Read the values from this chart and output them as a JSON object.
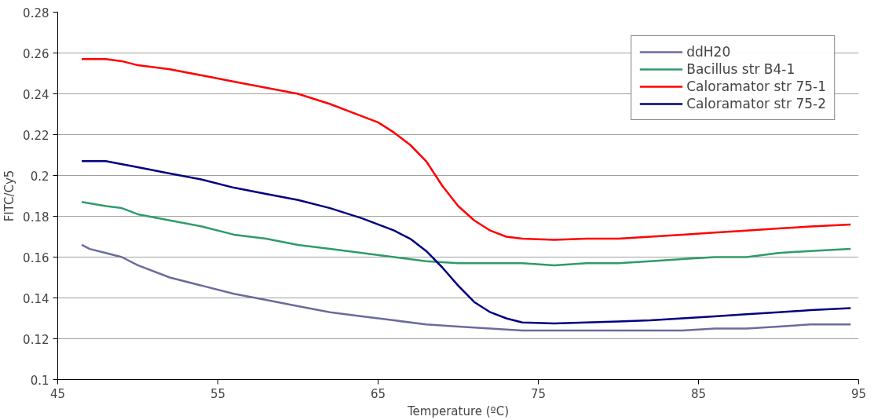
{
  "chart_data": {
    "type": "line",
    "xlabel": "Temperature (ºC)",
    "ylabel": "FITC/Cy5",
    "xlim": [
      45,
      95
    ],
    "xticks": [
      45,
      55,
      65,
      75,
      85,
      95
    ],
    "ylim": [
      0.1,
      0.28
    ],
    "yticks": [
      0.1,
      0.12,
      0.14,
      0.16,
      0.18,
      0.2,
      0.22,
      0.24,
      0.26,
      0.28
    ],
    "grid": "y",
    "legend": "top right",
    "marker": "none",
    "line_style": "solid",
    "series": [
      {
        "name": "ddH20",
        "color": "#6b6b9e",
        "x": [
          46.5,
          47,
          48,
          49,
          50,
          52,
          54,
          56,
          58,
          60,
          62,
          64,
          66,
          68,
          70,
          72,
          74,
          76,
          78,
          80,
          82,
          84,
          86,
          88,
          90,
          92,
          94.5
        ],
        "values": [
          0.166,
          0.164,
          0.162,
          0.16,
          0.156,
          0.15,
          0.146,
          0.142,
          0.139,
          0.136,
          0.133,
          0.131,
          0.129,
          0.127,
          0.126,
          0.125,
          0.124,
          0.124,
          0.124,
          0.124,
          0.124,
          0.124,
          0.125,
          0.125,
          0.126,
          0.127,
          0.127
        ]
      },
      {
        "name": "Bacillus str B4-1",
        "color": "#2e9b6b",
        "x": [
          46.5,
          48,
          49,
          50,
          52,
          54,
          56,
          58,
          60,
          62,
          64,
          66,
          68,
          70,
          72,
          74,
          76,
          78,
          80,
          82,
          84,
          86,
          88,
          90,
          92,
          94.5
        ],
        "values": [
          0.187,
          0.185,
          0.184,
          0.181,
          0.178,
          0.175,
          0.171,
          0.169,
          0.166,
          0.164,
          0.162,
          0.16,
          0.158,
          0.157,
          0.157,
          0.157,
          0.156,
          0.157,
          0.157,
          0.158,
          0.159,
          0.16,
          0.16,
          0.162,
          0.163,
          0.164
        ]
      },
      {
        "name": "Caloramator str 75-1",
        "color": "#ff0000",
        "x": [
          46.5,
          48,
          49,
          50,
          52,
          54,
          56,
          58,
          60,
          62,
          64,
          65,
          66,
          67,
          68,
          69,
          70,
          71,
          72,
          73,
          74,
          76,
          78,
          80,
          82,
          84,
          86,
          88,
          90,
          92,
          94.5
        ],
        "values": [
          0.257,
          0.257,
          0.256,
          0.254,
          0.252,
          0.249,
          0.246,
          0.243,
          0.24,
          0.235,
          0.229,
          0.226,
          0.221,
          0.215,
          0.207,
          0.195,
          0.185,
          0.178,
          0.173,
          0.17,
          0.169,
          0.1685,
          0.169,
          0.169,
          0.17,
          0.171,
          0.172,
          0.173,
          0.174,
          0.175,
          0.176
        ]
      },
      {
        "name": "Caloramator str 75-2",
        "color": "#000080",
        "x": [
          46.5,
          48,
          50,
          52,
          54,
          56,
          58,
          60,
          62,
          64,
          66,
          67,
          68,
          69,
          70,
          71,
          72,
          73,
          74,
          76,
          78,
          80,
          82,
          84,
          86,
          88,
          90,
          92,
          94.5
        ],
        "values": [
          0.207,
          0.207,
          0.204,
          0.201,
          0.198,
          0.194,
          0.191,
          0.188,
          0.184,
          0.179,
          0.173,
          0.169,
          0.163,
          0.155,
          0.146,
          0.138,
          0.133,
          0.13,
          0.128,
          0.1275,
          0.128,
          0.1285,
          0.129,
          0.13,
          0.131,
          0.132,
          0.133,
          0.134,
          0.135
        ]
      }
    ]
  }
}
